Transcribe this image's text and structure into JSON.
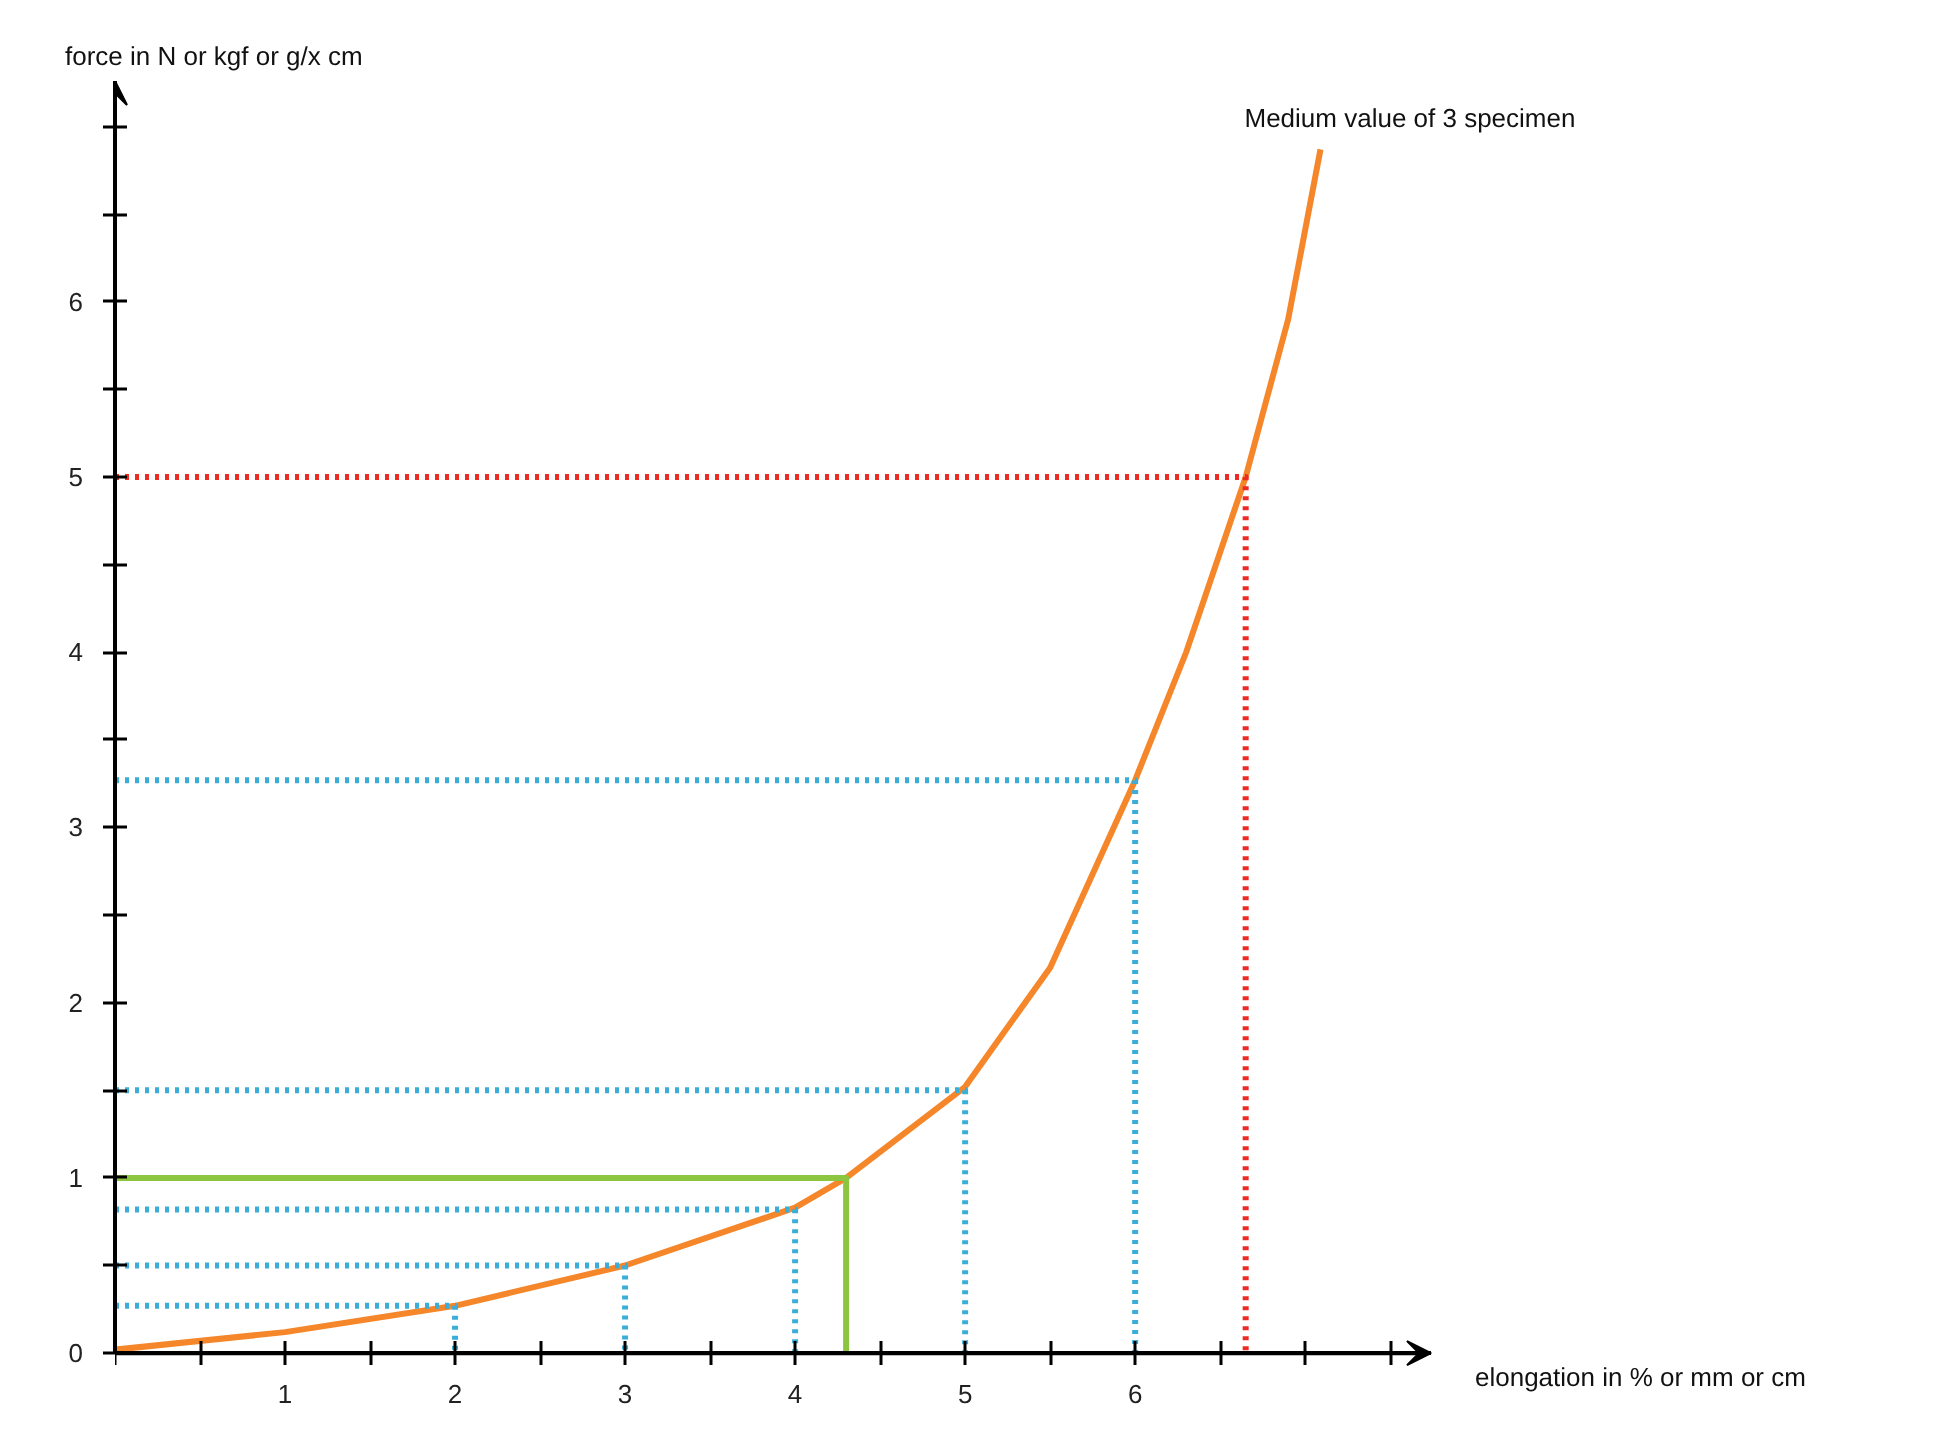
{
  "chart_data": {
    "type": "line",
    "xlabel": "elongation in % or mm or cm",
    "ylabel": "force in N or kgf or g/x cm",
    "xlim": [
      0,
      7.74
    ],
    "ylim": [
      0,
      7.26
    ],
    "xticks": [
      {
        "value": 0,
        "label": null
      },
      {
        "value": 0.5,
        "label": null
      },
      1,
      {
        "value": 1.5,
        "label": null
      },
      2,
      {
        "value": 2.5,
        "label": null
      },
      3,
      {
        "value": 3.5,
        "label": null
      },
      4,
      {
        "value": 4.5,
        "label": null
      },
      5,
      {
        "value": 5.5,
        "label": null
      },
      6,
      {
        "value": 6.5,
        "label": null
      },
      {
        "value": 7,
        "label": null
      },
      {
        "value": 7.5,
        "label": null
      }
    ],
    "yticks": [
      0,
      {
        "value": 0.5,
        "label": null
      },
      1,
      {
        "value": 1.5,
        "label": null
      },
      2,
      {
        "value": 2.5,
        "label": null
      },
      3,
      {
        "value": 3.5,
        "label": null
      },
      4,
      {
        "value": 4.5,
        "label": null
      },
      5,
      {
        "value": 5.5,
        "label": null
      },
      6,
      {
        "value": 6.5,
        "label": null
      },
      {
        "value": 7,
        "label": null
      }
    ],
    "grid": false,
    "marker": "none",
    "series": [
      {
        "name": "Medium value of 3 specimen",
        "color": "#f5862a",
        "line_style": "solid",
        "x": [
          0,
          1,
          2,
          3,
          4,
          4.3,
          5,
          5.5,
          6,
          6.3,
          6.65,
          6.9,
          7.09
        ],
        "values": [
          0.02,
          0.12,
          0.27,
          0.5,
          0.83,
          1.0,
          1.52,
          2.2,
          3.27,
          4.0,
          5.0,
          5.9,
          6.87
        ]
      },
      {
        "color": "#3aaed8",
        "line_style": "dotted",
        "x": [
          0,
          2,
          2
        ],
        "values": [
          0.27,
          0.27,
          0
        ]
      },
      {
        "color": "#3aaed8",
        "line_style": "dotted",
        "x": [
          0,
          3,
          3
        ],
        "values": [
          0.5,
          0.5,
          0
        ]
      },
      {
        "color": "#3aaed8",
        "line_style": "dotted",
        "x": [
          0,
          4,
          4
        ],
        "values": [
          0.82,
          0.82,
          0
        ]
      },
      {
        "color": "#3aaed8",
        "line_style": "dotted",
        "x": [
          0,
          5,
          5
        ],
        "values": [
          1.5,
          1.5,
          0
        ]
      },
      {
        "color": "#3aaed8",
        "line_style": "dotted",
        "x": [
          0,
          6,
          6
        ],
        "values": [
          3.27,
          3.27,
          0
        ]
      },
      {
        "color": "#ee2a24",
        "line_style": "dotted",
        "x": [
          0,
          6.65,
          6.65
        ],
        "values": [
          5.0,
          5.0,
          0
        ]
      },
      {
        "color": "#8cc63e",
        "line_style": "solid",
        "x": [
          0,
          4.3,
          4.3
        ],
        "values": [
          1.0,
          1.0,
          0
        ]
      }
    ]
  }
}
